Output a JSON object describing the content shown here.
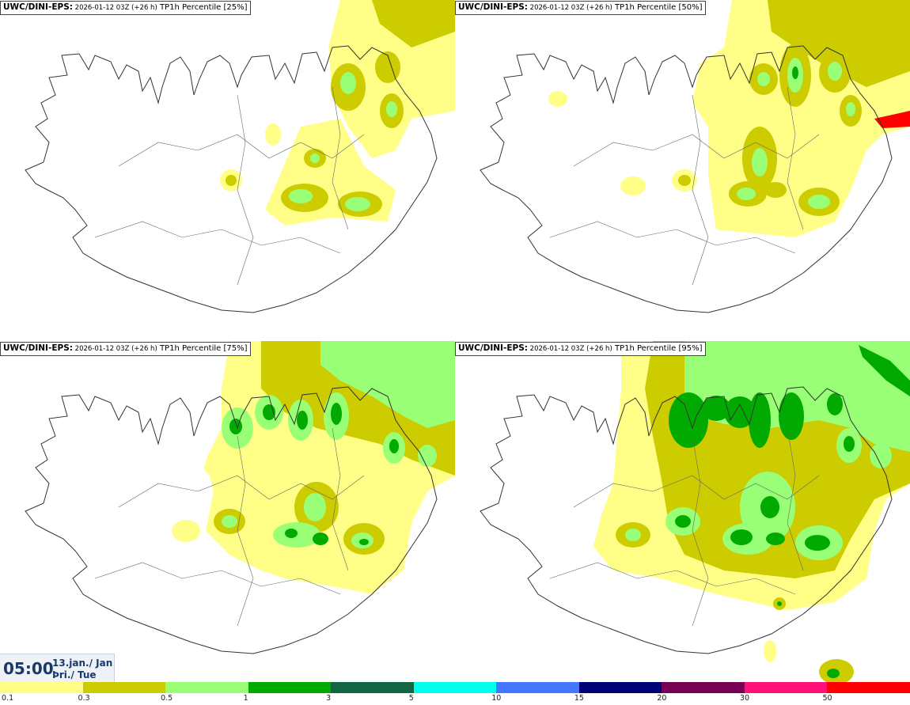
{
  "panels": [
    {
      "model": "UWC/DINI-EPS",
      "run": "2026-01-12 03Z (+26 h)",
      "field": "TP1h Percentile [25%]"
    },
    {
      "model": "UWC/DINI-EPS",
      "run": "2026-01-12 03Z (+26 h)",
      "field": "TP1h Percentile [50%]"
    },
    {
      "model": "UWC/DINI-EPS",
      "run": "2026-01-12 03Z (+26 h)",
      "field": "TP1h Percentile [75%]"
    },
    {
      "model": "UWC/DINI-EPS",
      "run": "2026-01-12 03Z (+26 h)",
      "field": "TP1h Percentile [95%]"
    }
  ],
  "valid_time": {
    "time": "05:00",
    "date_line1": "13.jan./ Jan",
    "date_line2": "Þri./ Tue"
  },
  "legend": {
    "colors": [
      "#ffff88",
      "#cccc00",
      "#99ff77",
      "#00aa00",
      "#116644",
      "#00ffee",
      "#4477ff",
      "#000077",
      "#770055",
      "#ff1177",
      "#ff0000"
    ],
    "labels": [
      "0.1",
      "0.3",
      "0.5",
      "1",
      "3",
      "5",
      "10",
      "15",
      "20",
      "30",
      "50"
    ]
  }
}
